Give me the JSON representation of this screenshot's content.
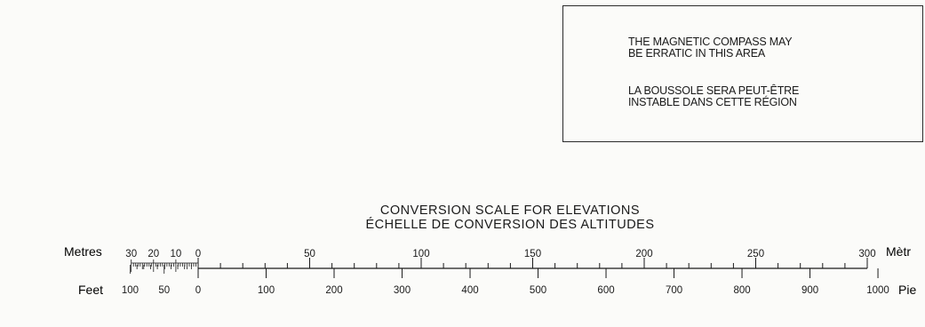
{
  "notice": {
    "english": "THE MAGNETIC COMPASS MAY\nBE ERRATIC IN THIS AREA",
    "french": "LA BOUSSOLE SERA PEUT-ÊTRE\nINSTABLE DANS CETTE RÉGION"
  },
  "conversion_scale": {
    "title_en": "CONVERSION SCALE FOR ELEVATIONS",
    "title_fr": "ÉCHELLE DE CONVERSION DES ALTITUDES",
    "metres_label_left": "Metres",
    "metres_label_right": "Mètr",
    "feet_label_left": "Feet",
    "feet_label_right": "Pie",
    "metres_ticks": [
      {
        "text": "30",
        "value": -30
      },
      {
        "text": "20",
        "value": -20
      },
      {
        "text": "10",
        "value": -10
      },
      {
        "text": "0",
        "value": 0
      },
      {
        "text": "50",
        "value": 50
      },
      {
        "text": "100",
        "value": 100
      },
      {
        "text": "150",
        "value": 150
      },
      {
        "text": "200",
        "value": 200
      },
      {
        "text": "250",
        "value": 250
      },
      {
        "text": "300",
        "value": 300
      }
    ],
    "feet_ticks": [
      {
        "text": "100",
        "value": -100
      },
      {
        "text": "50",
        "value": -50
      },
      {
        "text": "0",
        "value": 0
      },
      {
        "text": "100",
        "value": 100
      },
      {
        "text": "200",
        "value": 200
      },
      {
        "text": "300",
        "value": 300
      },
      {
        "text": "400",
        "value": 400
      },
      {
        "text": "500",
        "value": 500
      },
      {
        "text": "600",
        "value": 600
      },
      {
        "text": "700",
        "value": 700
      },
      {
        "text": "800",
        "value": 800
      },
      {
        "text": "900",
        "value": 900
      },
      {
        "text": "1000",
        "value": 1000
      }
    ],
    "metres_range": [
      0,
      300
    ],
    "feet_range": [
      0,
      1000
    ]
  },
  "colors": {
    "ink": "#1a1a1a",
    "paper": "#fbfbf9"
  }
}
